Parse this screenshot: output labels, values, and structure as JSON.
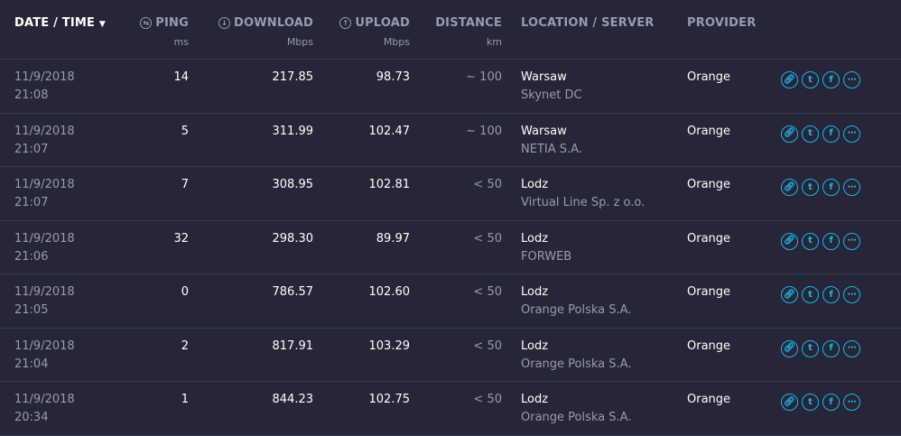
{
  "header": {
    "date_time": "DATE / TIME",
    "ping": "PING",
    "ping_unit": "ms",
    "download": "DOWNLOAD",
    "download_unit": "Mbps",
    "upload": "UPLOAD",
    "upload_unit": "Mbps",
    "distance": "DISTANCE",
    "distance_unit": "km",
    "location": "LOCATION / SERVER",
    "provider": "PROVIDER"
  },
  "accent_color": "#1cb5e8",
  "rows": [
    {
      "date": "11/9/2018",
      "time": "21:08",
      "ping": "14",
      "download": "217.85",
      "upload": "98.73",
      "distance": "~ 100",
      "location": "Warsaw",
      "server": "Skynet DC",
      "provider": "Orange"
    },
    {
      "date": "11/9/2018",
      "time": "21:07",
      "ping": "5",
      "download": "311.99",
      "upload": "102.47",
      "distance": "~ 100",
      "location": "Warsaw",
      "server": "NETIA S.A.",
      "provider": "Orange"
    },
    {
      "date": "11/9/2018",
      "time": "21:07",
      "ping": "7",
      "download": "308.95",
      "upload": "102.81",
      "distance": "< 50",
      "location": "Lodz",
      "server": "Virtual Line Sp. z o.o.",
      "provider": "Orange"
    },
    {
      "date": "11/9/2018",
      "time": "21:06",
      "ping": "32",
      "download": "298.30",
      "upload": "89.97",
      "distance": "< 50",
      "location": "Lodz",
      "server": "FORWEB",
      "provider": "Orange"
    },
    {
      "date": "11/9/2018",
      "time": "21:05",
      "ping": "0",
      "download": "786.57",
      "upload": "102.60",
      "distance": "< 50",
      "location": "Lodz",
      "server": "Orange Polska S.A.",
      "provider": "Orange"
    },
    {
      "date": "11/9/2018",
      "time": "21:04",
      "ping": "2",
      "download": "817.91",
      "upload": "103.29",
      "distance": "< 50",
      "location": "Lodz",
      "server": "Orange Polska S.A.",
      "provider": "Orange"
    },
    {
      "date": "11/9/2018",
      "time": "20:34",
      "ping": "1",
      "download": "844.23",
      "upload": "102.75",
      "distance": "< 50",
      "location": "Lodz",
      "server": "Orange Polska S.A.",
      "provider": "Orange"
    }
  ]
}
